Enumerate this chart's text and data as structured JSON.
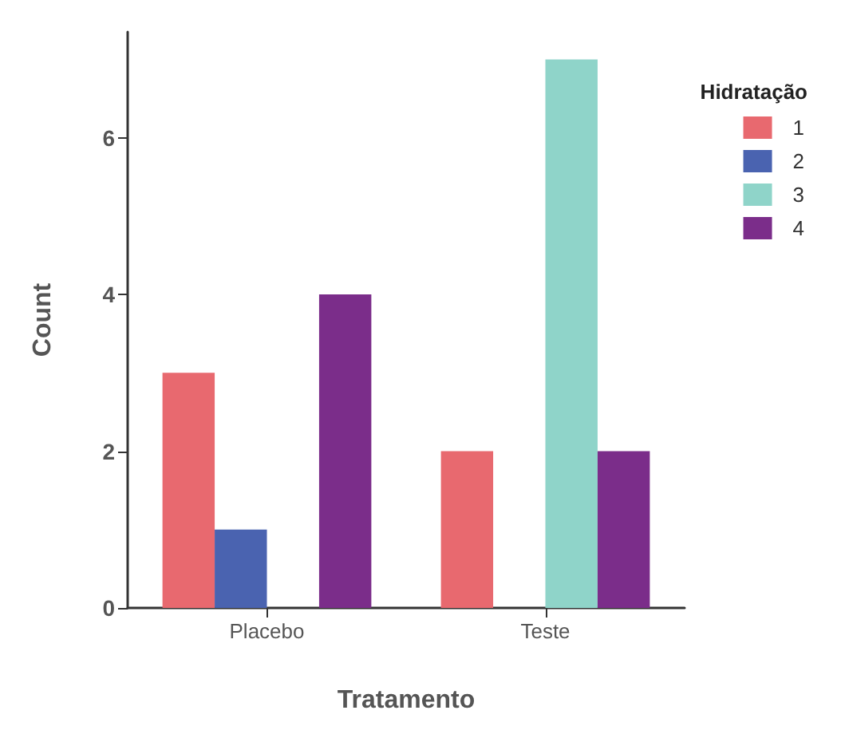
{
  "chart_data": {
    "type": "bar",
    "xlabel": "Tratamento",
    "ylabel": "Count",
    "legend_title": "Hidratação",
    "categories": [
      "Placebo",
      "Teste"
    ],
    "series": [
      {
        "name": "1",
        "color": "#e8696f",
        "values": [
          3,
          2
        ]
      },
      {
        "name": "2",
        "color": "#4a63b0",
        "values": [
          1,
          null
        ]
      },
      {
        "name": "3",
        "color": "#8fd4c9",
        "values": [
          null,
          7
        ]
      },
      {
        "name": "4",
        "color": "#7b2d8a",
        "values": [
          4,
          2
        ]
      }
    ],
    "ylim": [
      0,
      7.35
    ],
    "yticks": [
      0,
      2,
      4,
      6
    ],
    "grid": false,
    "legend": "right"
  }
}
